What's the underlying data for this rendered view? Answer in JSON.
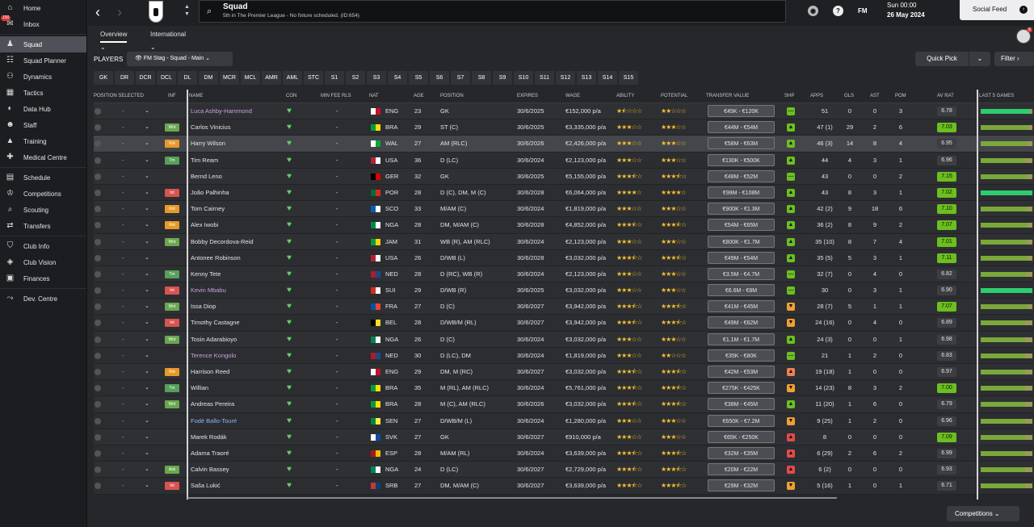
{
  "sidebar": {
    "items": [
      {
        "label": "Home",
        "icon": "home-icon"
      },
      {
        "label": "Inbox",
        "icon": "inbox-icon",
        "badge": "150"
      },
      {
        "label": "Squad",
        "icon": "squad-icon",
        "active": true
      },
      {
        "label": "Squad Planner",
        "icon": "planner-icon"
      },
      {
        "label": "Dynamics",
        "icon": "dynamics-icon"
      },
      {
        "label": "Tactics",
        "icon": "tactics-icon"
      },
      {
        "label": "Data Hub",
        "icon": "data-hub-icon"
      },
      {
        "label": "Staff",
        "icon": "staff-icon"
      },
      {
        "label": "Training",
        "icon": "training-icon"
      },
      {
        "label": "Medical Centre",
        "icon": "medical-icon"
      },
      {
        "label": "Schedule",
        "icon": "schedule-icon"
      },
      {
        "label": "Competitions",
        "icon": "trophy-icon"
      },
      {
        "label": "Scouting",
        "icon": "scouting-icon"
      },
      {
        "label": "Transfers",
        "icon": "transfers-icon"
      },
      {
        "label": "Club Info",
        "icon": "shield-icon"
      },
      {
        "label": "Club Vision",
        "icon": "vision-icon"
      },
      {
        "label": "Finances",
        "icon": "finances-icon"
      },
      {
        "label": "Dev. Centre",
        "icon": "dev-centre-icon"
      }
    ]
  },
  "header": {
    "title": "Squad",
    "subtitle": "5th in The Premier League - No fixture scheduled. (ID:654)",
    "fm": "FM",
    "day": "Sun 00:00",
    "date": "26 May 2024",
    "social_feed": "Social Feed",
    "avatar_badge": "6"
  },
  "tabs": [
    "Overview",
    "International"
  ],
  "players_label": "PLAYERS",
  "view_select": "FM Stag - Squad - Main",
  "quick_pick": "Quick Pick",
  "filter": "Filter",
  "chips": [
    "GK",
    "DR",
    "DCR",
    "DCL",
    "DL",
    "DM",
    "MCR",
    "MCL",
    "AMR",
    "AML",
    "STC",
    "S1",
    "S2",
    "S3",
    "S4",
    "S5",
    "S6",
    "S7",
    "S8",
    "S9",
    "S10",
    "S11",
    "S12",
    "S13",
    "S14",
    "S15"
  ],
  "columns": {
    "position_selected": "Position Selected",
    "inf": "Inf",
    "name": "Name",
    "con": "Con",
    "min_fee": "Min Fee Rls",
    "nat": "Nat",
    "age": "Age",
    "position": "Position",
    "expires": "Expires",
    "wage": "Wage",
    "ability": "Ability",
    "potential": "Potential",
    "transfer_value": "Transfer Value",
    "shp": "Shp",
    "apps": "Apps",
    "gls": "Gls",
    "ast": "Ast",
    "pom": "PoM",
    "av_rat": "Av Rat",
    "last5": "Last 5 Games"
  },
  "players": [
    {
      "name": "Luca Ashby-Hammond",
      "inf": "",
      "nat": "ENG",
      "age": "23",
      "pos": "GK",
      "exp": "30/6/2025",
      "wage": "€152,000 p/a",
      "abil": 1.5,
      "pot": 2,
      "tv": "€45K - €120K",
      "shp": "neutral",
      "apps": "51",
      "gls": "0",
      "ast": "0",
      "pom": "3",
      "avr": "6.78",
      "good": false,
      "last5": 0.95
    },
    {
      "name": "Carlos Vinicius",
      "inf": "Wnt",
      "nat": "BRA",
      "age": "29",
      "pos": "ST (C)",
      "exp": "30/6/2025",
      "wage": "€3,335,000 p/a",
      "abil": 3,
      "pot": 3,
      "tv": "€44M - €54M",
      "shp": "up",
      "apps": "47 (1)",
      "gls": "29",
      "ast": "2",
      "pom": "6",
      "avr": "7.03",
      "good": true,
      "last5": 0.92
    },
    {
      "name": "Harry Wilson",
      "inf": "Rst",
      "nat": "WAL",
      "age": "27",
      "pos": "AM (RLC)",
      "exp": "30/6/2026",
      "wage": "€2,426,000 p/a",
      "abil": 3,
      "pot": 3,
      "tv": "€58M - €63M",
      "shp": "up",
      "apps": "46 (3)",
      "gls": "14",
      "ast": "8",
      "pom": "4",
      "avr": "6.95",
      "good": false,
      "last5": 0.88
    },
    {
      "name": "Tim Ream",
      "inf": "Tm",
      "nat": "USA",
      "age": "36",
      "pos": "D (LC)",
      "exp": "30/6/2024",
      "wage": "€2,123,000 p/a",
      "abil": 3,
      "pot": 3,
      "tv": "€130K - €500K",
      "shp": "up",
      "apps": "44",
      "gls": "4",
      "ast": "3",
      "pom": "1",
      "avr": "6.96",
      "good": false,
      "last5": 0.85
    },
    {
      "name": "Bernd Leno",
      "inf": "",
      "nat": "GER",
      "age": "32",
      "pos": "GK",
      "exp": "30/6/2025",
      "wage": "€5,155,000 p/a",
      "abil": 3.5,
      "pot": 3.5,
      "tv": "€48M - €52M",
      "shp": "neutral",
      "apps": "43",
      "gls": "0",
      "ast": "0",
      "pom": "2",
      "avr": "7.15",
      "good": true,
      "last5": 0.9
    },
    {
      "name": "João Palhinha",
      "inf": "Int",
      "nat": "POR",
      "age": "28",
      "pos": "D (C), DM, M (C)",
      "exp": "30/6/2028",
      "wage": "€6,064,000 p/a",
      "abil": 4,
      "pot": 4,
      "tv": "€99M - €108M",
      "shp": "up",
      "apps": "43",
      "gls": "8",
      "ast": "3",
      "pom": "1",
      "avr": "7.02",
      "good": true,
      "last5": 1.0
    },
    {
      "name": "Tom Cairney",
      "inf": "Rst",
      "nat": "SCO",
      "age": "33",
      "pos": "M/AM (C)",
      "exp": "30/6/2024",
      "wage": "€1,819,000 p/a",
      "abil": 3,
      "pot": 3,
      "tv": "€900K - €1.3M",
      "shp": "up",
      "apps": "42 (2)",
      "gls": "9",
      "ast": "18",
      "pom": "6",
      "avr": "7.10",
      "good": true,
      "last5": 0.9
    },
    {
      "name": "Alex Iwobi",
      "inf": "Rst",
      "nat": "NGA",
      "age": "28",
      "pos": "DM, M/AM (C)",
      "exp": "30/6/2028",
      "wage": "€4,852,000 p/a",
      "abil": 3.5,
      "pot": 3.5,
      "tv": "€54M - €65M",
      "shp": "up",
      "apps": "36 (2)",
      "gls": "8",
      "ast": "9",
      "pom": "2",
      "avr": "7.07",
      "good": true,
      "last5": 0.9
    },
    {
      "name": "Bobby Decordova-Reid",
      "inf": "Wnt",
      "nat": "JAM",
      "age": "31",
      "pos": "WB (R), AM (RLC)",
      "exp": "30/6/2024",
      "wage": "€2,123,000 p/a",
      "abil": 3,
      "pot": 3,
      "tv": "€800K - €1.7M",
      "shp": "up",
      "apps": "35 (10)",
      "gls": "8",
      "ast": "7",
      "pom": "4",
      "avr": "7.01",
      "good": true,
      "last5": 0.88
    },
    {
      "name": "Antonee Robinson",
      "inf": "",
      "nat": "USA",
      "age": "26",
      "pos": "D/WB (L)",
      "exp": "30/6/2028",
      "wage": "€3,032,000 p/a",
      "abil": 3.5,
      "pot": 3.5,
      "tv": "€49M - €54M",
      "shp": "up",
      "apps": "35 (5)",
      "gls": "5",
      "ast": "3",
      "pom": "1",
      "avr": "7.11",
      "good": true,
      "last5": 0.9
    },
    {
      "name": "Kenny Tete",
      "inf": "Tm",
      "nat": "NED",
      "age": "28",
      "pos": "D (RC), WB (R)",
      "exp": "30/6/2024",
      "wage": "€2,123,000 p/a",
      "abil": 3,
      "pot": 3,
      "tv": "€3.5M - €4.7M",
      "shp": "neutral",
      "apps": "32 (7)",
      "gls": "0",
      "ast": "4",
      "pom": "0",
      "avr": "6.82",
      "good": false,
      "last5": 0.88
    },
    {
      "name": "Kevin Mbabu",
      "inf": "Int",
      "nat": "SUI",
      "age": "29",
      "pos": "D/WB (R)",
      "exp": "30/6/2025",
      "wage": "€3,032,000 p/a",
      "abil": 3,
      "pot": 3,
      "tv": "€6.6M - €8M",
      "shp": "neutral",
      "apps": "30",
      "gls": "0",
      "ast": "3",
      "pom": "1",
      "avr": "6.90",
      "good": false,
      "last5": 1.0
    },
    {
      "name": "Issa Diop",
      "inf": "Wnt",
      "nat": "FRA",
      "age": "27",
      "pos": "D (C)",
      "exp": "30/6/2027",
      "wage": "€3,942,000 p/a",
      "abil": 3.5,
      "pot": 3.5,
      "tv": "€41M - €45M",
      "shp": "down",
      "apps": "28 (7)",
      "gls": "5",
      "ast": "1",
      "pom": "1",
      "avr": "7.07",
      "good": true,
      "last5": 0.9
    },
    {
      "name": "Timothy Castagne",
      "inf": "Int",
      "nat": "BEL",
      "age": "28",
      "pos": "D/WB/M (RL)",
      "exp": "30/6/2027",
      "wage": "€3,942,000 p/a",
      "abil": 3.5,
      "pot": 3.5,
      "tv": "€49M - €62M",
      "shp": "down",
      "apps": "24 (16)",
      "gls": "0",
      "ast": "4",
      "pom": "0",
      "avr": "6.89",
      "good": false,
      "last5": 0.85
    },
    {
      "name": "Tosin Adarabioyo",
      "inf": "Wnt",
      "nat": "NGA",
      "age": "26",
      "pos": "D (C)",
      "exp": "30/6/2024",
      "wage": "€3,032,000 p/a",
      "abil": 3,
      "pot": 3,
      "tv": "€1.1M - €1.7M",
      "shp": "up",
      "apps": "24 (3)",
      "gls": "0",
      "ast": "0",
      "pom": "1",
      "avr": "6.98",
      "good": false,
      "last5": 0.86
    },
    {
      "name": "Terence Kongolo",
      "inf": "",
      "nat": "NED",
      "age": "30",
      "pos": "D (LC), DM",
      "exp": "30/6/2024",
      "wage": "€1,819,000 p/a",
      "abil": 3,
      "pot": 2,
      "tv": "€35K - €80K",
      "shp": "neutral",
      "apps": "21",
      "gls": "1",
      "ast": "2",
      "pom": "0",
      "avr": "6.83",
      "good": false,
      "last5": 0.85
    },
    {
      "name": "Harrison Reed",
      "inf": "Rst",
      "nat": "ENG",
      "age": "29",
      "pos": "DM, M (RC)",
      "exp": "30/6/2027",
      "wage": "€3,032,000 p/a",
      "abil": 3.5,
      "pot": 3.5,
      "tv": "€42M - €53M",
      "shp": "down2",
      "apps": "19 (18)",
      "gls": "1",
      "ast": "0",
      "pom": "0",
      "avr": "6.97",
      "good": false,
      "last5": 0.86
    },
    {
      "name": "Willian",
      "inf": "Tm",
      "nat": "BRA",
      "age": "35",
      "pos": "M (RL), AM (RLC)",
      "exp": "30/6/2024",
      "wage": "€5,761,000 p/a",
      "abil": 3.5,
      "pot": 3.5,
      "tv": "€275K - €425K",
      "shp": "down",
      "apps": "14 (23)",
      "gls": "8",
      "ast": "3",
      "pom": "2",
      "avr": "7.00",
      "good": true,
      "last5": 0.86
    },
    {
      "name": "Andreas Pereira",
      "inf": "Wnt",
      "nat": "BRA",
      "age": "28",
      "pos": "M (C), AM (RLC)",
      "exp": "30/6/2026",
      "wage": "€3,032,000 p/a",
      "abil": 3.5,
      "pot": 3.5,
      "tv": "€38M - €45M",
      "shp": "up",
      "apps": "11 (20)",
      "gls": "1",
      "ast": "6",
      "pom": "0",
      "avr": "6.79",
      "good": false,
      "last5": 0.86
    },
    {
      "name": "Fodé Ballo-Touré",
      "inf": "",
      "nat": "SEN",
      "age": "27",
      "pos": "D/WB/M (L)",
      "exp": "30/6/2024",
      "wage": "€1,280,000 p/a",
      "abil": 3,
      "pot": 3,
      "tv": "€650K - €7.2M",
      "shp": "down",
      "apps": "9 (25)",
      "gls": "1",
      "ast": "2",
      "pom": "0",
      "avr": "6.96",
      "good": false,
      "last5": 0.86
    },
    {
      "name": "Marek Rodák",
      "inf": "",
      "nat": "SVK",
      "age": "27",
      "pos": "GK",
      "exp": "30/6/2027",
      "wage": "€910,000 p/a",
      "abil": 3,
      "pot": 3,
      "tv": "€65K - €250K",
      "shp": "red",
      "apps": "8",
      "gls": "0",
      "ast": "0",
      "pom": "0",
      "avr": "7.09",
      "good": true,
      "last5": 0.86
    },
    {
      "name": "Adama Traoré",
      "inf": "",
      "nat": "ESP",
      "age": "28",
      "pos": "M/AM (RL)",
      "exp": "30/6/2024",
      "wage": "€3,639,000 p/a",
      "abil": 3.5,
      "pot": 3.5,
      "tv": "€32M - €35M",
      "shp": "red",
      "apps": "6 (29)",
      "gls": "2",
      "ast": "6",
      "pom": "2",
      "avr": "6.99",
      "good": false,
      "last5": 0.86
    },
    {
      "name": "Calvin Bassey",
      "inf": "Ask",
      "nat": "NGA",
      "age": "24",
      "pos": "D (LC)",
      "exp": "30/6/2027",
      "wage": "€2,729,000 p/a",
      "abil": 3.5,
      "pot": 3.5,
      "tv": "€20M - €22M",
      "shp": "red",
      "apps": "6 (2)",
      "gls": "0",
      "ast": "0",
      "pom": "0",
      "avr": "6.93",
      "good": false,
      "last5": 0.86
    },
    {
      "name": "Saša Lukić",
      "inf": "Int",
      "nat": "SRB",
      "age": "27",
      "pos": "DM, M/AM (C)",
      "exp": "30/6/2027",
      "wage": "€3,639,000 p/a",
      "abil": 3.5,
      "pot": 3.5,
      "tv": "€29M - €32M",
      "shp": "down",
      "apps": "5 (16)",
      "gls": "1",
      "ast": "0",
      "pom": "1",
      "avr": "6.71",
      "good": false,
      "last5": 0.86
    }
  ],
  "footer": {
    "competitions": "Competitions"
  }
}
